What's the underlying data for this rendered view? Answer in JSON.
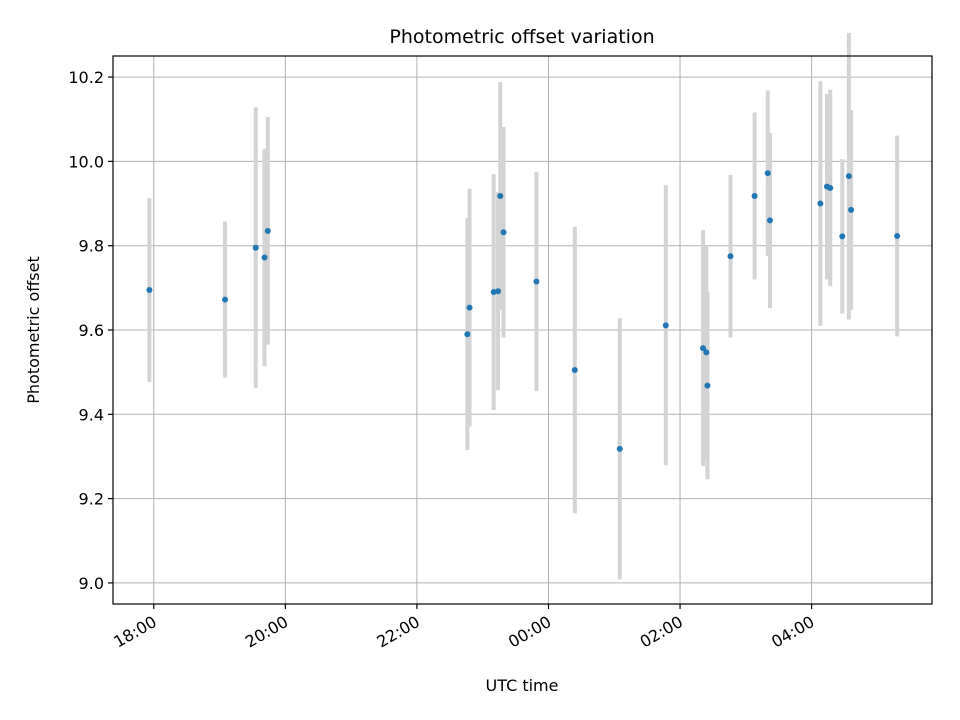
{
  "chart_data": {
    "type": "scatter",
    "title": "Photometric offset variation",
    "xlabel": "UTC time",
    "ylabel": "Photometric offset",
    "x_tick_labels": [
      "18:00",
      "20:00",
      "22:00",
      "00:00",
      "02:00",
      "04:00"
    ],
    "x_tick_hours": [
      18,
      20,
      22,
      24,
      26,
      28
    ],
    "xlim_hours": [
      17.38,
      29.83
    ],
    "y_ticks": [
      9.0,
      9.2,
      9.4,
      9.6,
      9.8,
      10.0,
      10.2
    ],
    "y_tick_labels": [
      "9.0",
      "9.2",
      "9.4",
      "9.6",
      "9.8",
      "10.0",
      "10.2"
    ],
    "ylim": [
      8.95,
      10.25
    ],
    "grid": true,
    "colors": {
      "point": "#1f77b4",
      "errorbar": "#d3d3d3",
      "grid": "#b0b0b0"
    },
    "points": [
      {
        "t": "17:56",
        "y": 9.695,
        "err": 0.218
      },
      {
        "t": "19:05",
        "y": 9.672,
        "err": 0.185
      },
      {
        "t": "19:33",
        "y": 9.795,
        "err": 0.333
      },
      {
        "t": "19:41",
        "y": 9.772,
        "err": 0.258
      },
      {
        "t": "19:44",
        "y": 9.835,
        "err": 0.27
      },
      {
        "t": "22:46",
        "y": 9.59,
        "err": 0.275
      },
      {
        "t": "22:48",
        "y": 9.653,
        "err": 0.282
      },
      {
        "t": "23:10",
        "y": 9.69,
        "err": 0.28
      },
      {
        "t": "23:14",
        "y": 9.692,
        "err": 0.235
      },
      {
        "t": "23:16",
        "y": 9.918,
        "err": 0.27
      },
      {
        "t": "23:19",
        "y": 9.832,
        "err": 0.25
      },
      {
        "t": "23:49",
        "y": 9.715,
        "err": 0.26
      },
      {
        "t": "00:24",
        "y": 9.505,
        "err": 0.34
      },
      {
        "t": "01:05",
        "y": 9.318,
        "err": 0.31
      },
      {
        "t": "01:47",
        "y": 9.611,
        "err": 0.332
      },
      {
        "t": "02:21",
        "y": 9.557,
        "err": 0.28
      },
      {
        "t": "02:24",
        "y": 9.547,
        "err": 0.253
      },
      {
        "t": "02:25",
        "y": 9.468,
        "err": 0.222
      },
      {
        "t": "02:46",
        "y": 9.775,
        "err": 0.193
      },
      {
        "t": "03:08",
        "y": 9.918,
        "err": 0.198
      },
      {
        "t": "03:20",
        "y": 9.972,
        "err": 0.196
      },
      {
        "t": "03:22",
        "y": 9.86,
        "err": 0.208
      },
      {
        "t": "04:08",
        "y": 9.9,
        "err": 0.29
      },
      {
        "t": "04:14",
        "y": 9.94,
        "err": 0.22
      },
      {
        "t": "04:17",
        "y": 9.937,
        "err": 0.233
      },
      {
        "t": "04:28",
        "y": 9.822,
        "err": 0.183
      },
      {
        "t": "04:34",
        "y": 9.965,
        "err": 0.34
      },
      {
        "t": "04:36",
        "y": 9.885,
        "err": 0.237
      },
      {
        "t": "05:18",
        "y": 9.823,
        "err": 0.238
      }
    ]
  }
}
